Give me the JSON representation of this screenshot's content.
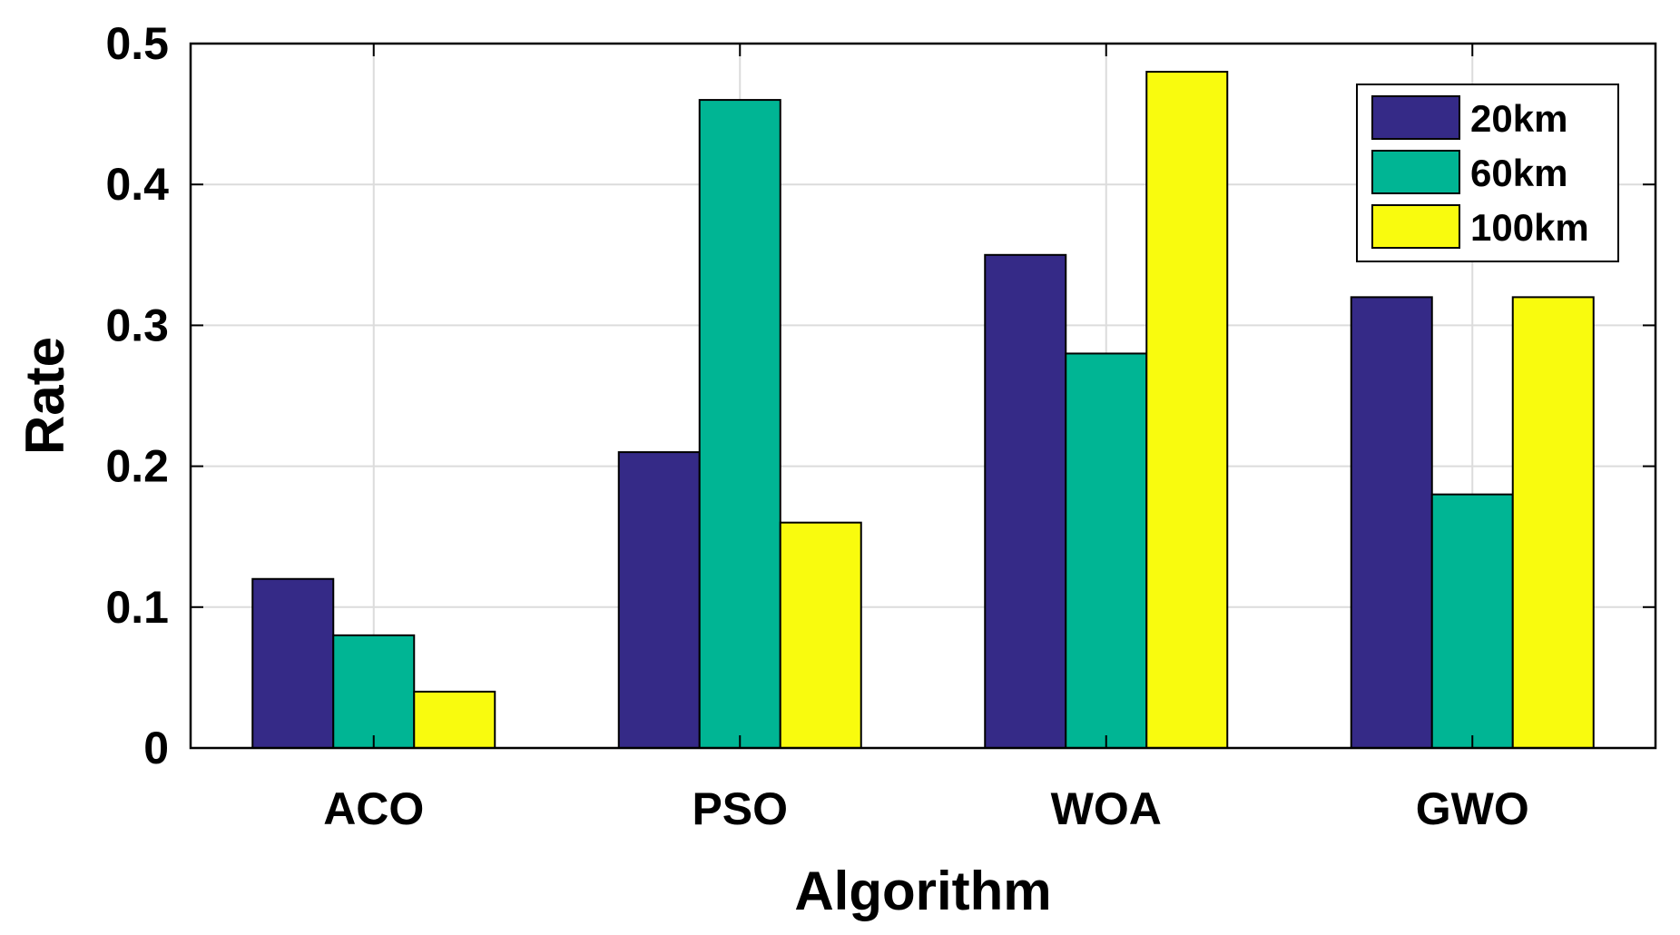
{
  "chart_data": {
    "type": "bar",
    "title": "",
    "xlabel": "Algorithm",
    "ylabel": "Rate",
    "categories": [
      "ACO",
      "PSO",
      "WOA",
      "GWO"
    ],
    "series": [
      {
        "name": "20km",
        "color": "#352a87",
        "values": [
          0.12,
          0.21,
          0.35,
          0.32
        ]
      },
      {
        "name": "60km",
        "color": "#00b594",
        "values": [
          0.08,
          0.46,
          0.28,
          0.18
        ]
      },
      {
        "name": "100km",
        "color": "#f9fb0e",
        "values": [
          0.04,
          0.16,
          0.48,
          0.32
        ]
      }
    ],
    "ylim": [
      0,
      0.5
    ],
    "yticks": [
      0,
      0.1,
      0.2,
      0.3,
      0.4,
      0.5
    ],
    "ytick_labels": [
      "0",
      "0.1",
      "0.2",
      "0.3",
      "0.4",
      "0.5"
    ],
    "grid": true,
    "legend_position": "top-right"
  }
}
